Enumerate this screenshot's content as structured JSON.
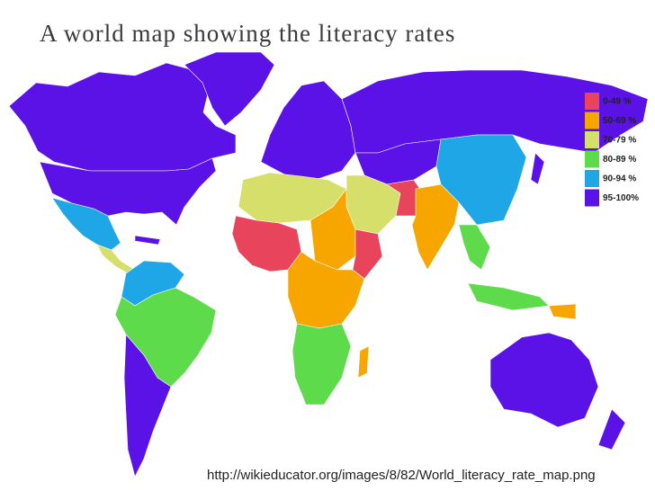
{
  "header": {
    "title": "A world map showing the literacy rates"
  },
  "legend": {
    "items": [
      {
        "label": "0-49 %",
        "color": "#e8455c"
      },
      {
        "label": "50-69 %",
        "color": "#f7a600"
      },
      {
        "label": "70-79 %",
        "color": "#d6df6a"
      },
      {
        "label": "80-89 %",
        "color": "#5edb4b"
      },
      {
        "label": "90-94 %",
        "color": "#1fa6e6"
      },
      {
        "label": "95-100%",
        "color": "#5a12e6"
      }
    ]
  },
  "footer": {
    "source": "http://wikieducator.org/images/8/82/World_literacy_rate_map.png"
  }
}
